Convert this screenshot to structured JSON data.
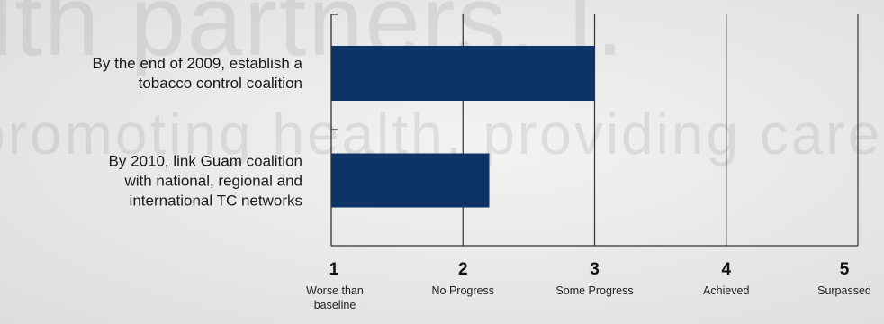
{
  "watermark": {
    "line1": "lth partners, I.",
    "line2": "promoting health, providing care —"
  },
  "colors": {
    "bar": "#0c3466",
    "axis": "#333333",
    "text": "#1a1a1a"
  },
  "chart_data": {
    "type": "bar",
    "orientation": "horizontal",
    "categories": [
      "By the end of 2009, establish a tobacco control coalition",
      "By 2010, link Guam coalition with national, regional and international TC networks"
    ],
    "category_lines": [
      [
        "By the end of 2009, establish a",
        "tobacco control coalition"
      ],
      [
        "By 2010, link Guam coalition",
        "with national, regional and",
        "international TC networks"
      ]
    ],
    "values": [
      3,
      2.2
    ],
    "xlim": [
      1,
      5
    ],
    "x_ticks": [
      {
        "value": 1,
        "label": "1",
        "desc": [
          "Worse than",
          "baseline"
        ]
      },
      {
        "value": 2,
        "label": "2",
        "desc": [
          "No Progress"
        ]
      },
      {
        "value": 3,
        "label": "3",
        "desc": [
          "Some Progress"
        ]
      },
      {
        "value": 4,
        "label": "4",
        "desc": [
          "Achieved"
        ]
      },
      {
        "value": 5,
        "label": "5",
        "desc": [
          "Surpassed"
        ]
      }
    ],
    "grid": true,
    "title": "",
    "xlabel": "",
    "ylabel": ""
  }
}
